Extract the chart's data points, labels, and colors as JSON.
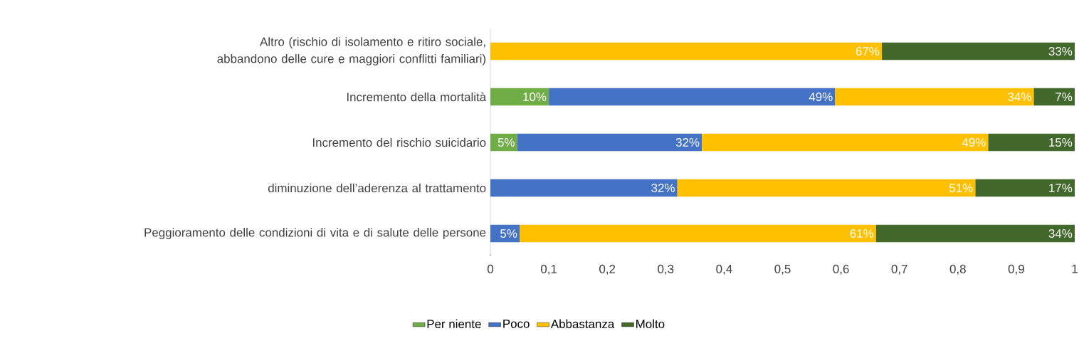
{
  "chart_data": {
    "type": "bar",
    "orientation": "horizontal",
    "stacked": true,
    "legend": "bottom",
    "grid": false,
    "categories": [
      "Altro (rischio di isolamento e ritiro sociale, abbandono delle cure e maggiori conflitti familiari)",
      "Incremento della mortalità",
      "Incremento del rischio suicidario",
      "diminuzione dell’aderenza al trattamento",
      "Peggioramento delle condizioni di vita e di salute delle persone"
    ],
    "xlim": [
      0,
      1
    ],
    "xticks": [
      0,
      {
        "value": 0.1,
        "label": "0,1"
      },
      {
        "value": 0.2,
        "label": "0,2"
      },
      {
        "value": 0.3,
        "label": "0,3"
      },
      {
        "value": 0.4,
        "label": "0,4"
      },
      {
        "value": 0.5,
        "label": "0,5"
      },
      {
        "value": 0.6,
        "label": "0,6"
      },
      {
        "value": 0.7,
        "label": "0,7"
      },
      {
        "value": 0.8,
        "label": "0,8"
      },
      {
        "value": 0.9,
        "label": "0,9"
      },
      1
    ],
    "series": [
      {
        "name": "Per niente",
        "color": "#70ad47",
        "values": [
          null,
          0.1,
          0.046,
          null,
          null
        ],
        "value_labels": [
          null,
          "10%",
          "5%",
          null,
          null
        ]
      },
      {
        "name": "Poco",
        "color": "#4472c4",
        "values": [
          null,
          0.49,
          0.316,
          0.32,
          0.05
        ],
        "value_labels": [
          null,
          "49%",
          "32%",
          "32%",
          "5%"
        ]
      },
      {
        "name": "Abbastanza",
        "color": "#ffc000",
        "values": [
          0.67,
          0.34,
          0.49,
          0.51,
          0.61
        ],
        "value_labels": [
          "67%",
          "34%",
          "49%",
          "51%",
          "61%"
        ]
      },
      {
        "name": "Molto",
        "color": "#43682b",
        "values": [
          0.33,
          0.07,
          0.148,
          0.17,
          0.34
        ],
        "value_labels": [
          "33%",
          "7%",
          "15%",
          "17%",
          "34%"
        ]
      }
    ]
  }
}
